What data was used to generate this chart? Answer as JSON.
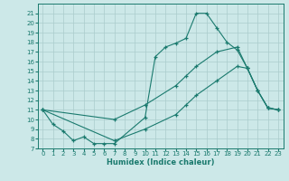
{
  "xlabel": "Humidex (Indice chaleur)",
  "bg_color": "#cce8e8",
  "line_color": "#1a7a6e",
  "grid_color": "#aacccc",
  "xlim": [
    -0.5,
    23.5
  ],
  "ylim": [
    7,
    22
  ],
  "yticks": [
    7,
    8,
    9,
    10,
    11,
    12,
    13,
    14,
    15,
    16,
    17,
    18,
    19,
    20,
    21
  ],
  "xticks": [
    0,
    1,
    2,
    3,
    4,
    5,
    6,
    7,
    8,
    9,
    10,
    11,
    12,
    13,
    14,
    15,
    16,
    17,
    18,
    19,
    20,
    21,
    22,
    23
  ],
  "line1": {
    "x": [
      0,
      1,
      2,
      3,
      4,
      5,
      6,
      7,
      10,
      11,
      12,
      13,
      14,
      15,
      16,
      17,
      18,
      19,
      20,
      21,
      22,
      23
    ],
    "y": [
      11,
      9.5,
      8.8,
      7.8,
      8.2,
      7.5,
      7.5,
      7.5,
      10.2,
      16.5,
      17.5,
      17.9,
      18.4,
      21.0,
      21.0,
      19.5,
      18.0,
      17.2,
      15.3,
      13.0,
      11.2,
      11.0
    ]
  },
  "line2": {
    "x": [
      0,
      7,
      10,
      13,
      14,
      15,
      17,
      19,
      20,
      21,
      22,
      23
    ],
    "y": [
      11,
      10.0,
      11.5,
      13.5,
      14.5,
      15.5,
      17.0,
      17.5,
      15.3,
      13.0,
      11.2,
      11.0
    ]
  },
  "line3": {
    "x": [
      0,
      7,
      10,
      13,
      14,
      15,
      17,
      19,
      20,
      21,
      22,
      23
    ],
    "y": [
      11,
      7.8,
      9.0,
      10.5,
      11.5,
      12.5,
      14.0,
      15.5,
      15.3,
      13.0,
      11.2,
      11.0
    ]
  }
}
